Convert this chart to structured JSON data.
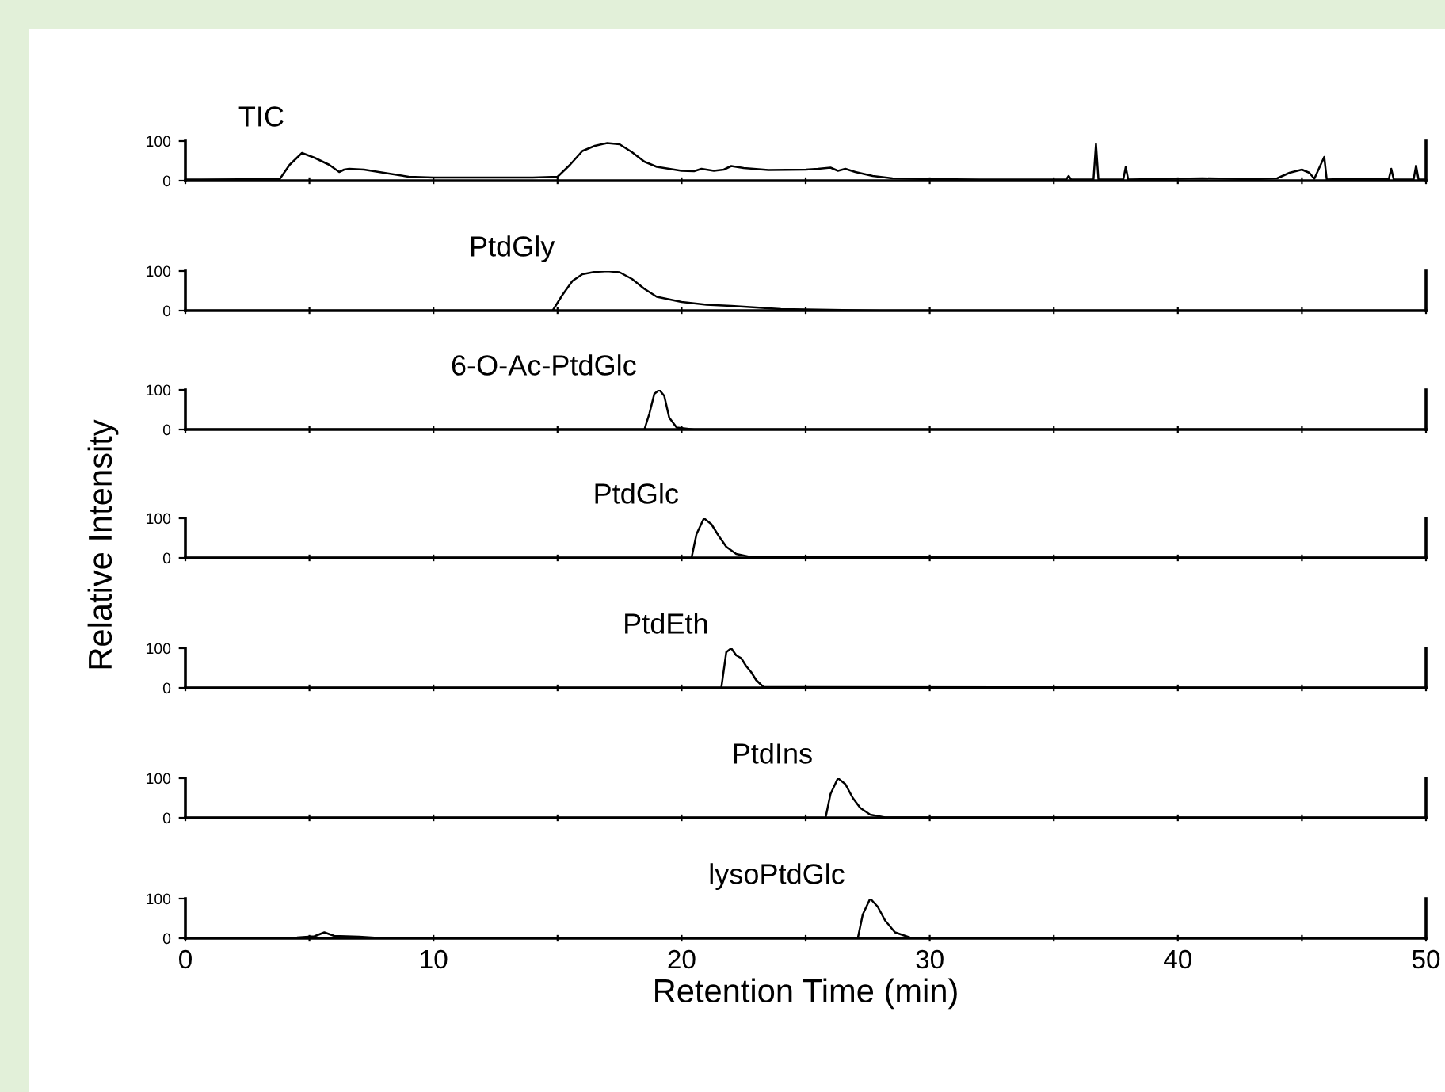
{
  "chart_data": [
    {
      "type": "line",
      "xlim": [
        0,
        50
      ],
      "ylim": [
        0,
        100
      ],
      "yticks": [
        0,
        100
      ],
      "xticks": [
        {
          "value": 0,
          "label": null
        },
        {
          "value": 5,
          "label": null
        },
        {
          "value": 10,
          "label": null
        },
        {
          "value": 15,
          "label": null
        },
        {
          "value": 20,
          "label": null
        },
        {
          "value": 25,
          "label": null
        },
        {
          "value": 30,
          "label": null
        },
        {
          "value": 35,
          "label": null
        },
        {
          "value": 40,
          "label": null
        },
        {
          "value": 45,
          "label": null
        },
        {
          "value": 50,
          "label": null
        }
      ],
      "tick_labels": "y",
      "series": [
        {
          "name": "TIC",
          "color": "#000000",
          "x": [
            0,
            3.8,
            4.2,
            4.7,
            5.2,
            5.8,
            6.2,
            6.4,
            6.6,
            7.2,
            8,
            9,
            10,
            14,
            15,
            15.5,
            16,
            16.5,
            17,
            17.5,
            18,
            18.5,
            19,
            20,
            20.5,
            20.8,
            21.3,
            21.7,
            22,
            22.5,
            23.5,
            25,
            25.5,
            26,
            26.3,
            26.6,
            27,
            27.7,
            28.5,
            30,
            32,
            35.5,
            35.6,
            35.7,
            36.6,
            36.7,
            36.8,
            37.8,
            37.9,
            38,
            41,
            43,
            44,
            44.5,
            45,
            45.3,
            45.5,
            45.9,
            46,
            47,
            48.5,
            48.6,
            48.7,
            49.5,
            49.6,
            49.7,
            50
          ],
          "values": [
            3,
            4,
            40,
            70,
            58,
            40,
            22,
            28,
            30,
            28,
            20,
            10,
            8,
            8,
            10,
            40,
            75,
            88,
            95,
            92,
            72,
            48,
            35,
            25,
            24,
            30,
            25,
            28,
            37,
            32,
            27,
            28,
            30,
            33,
            25,
            30,
            22,
            12,
            6,
            4,
            3,
            3,
            12,
            3,
            3,
            93,
            3,
            3,
            35,
            3,
            6,
            4,
            6,
            20,
            28,
            20,
            5,
            60,
            3,
            5,
            4,
            30,
            3,
            3,
            38,
            3,
            3
          ]
        }
      ]
    },
    {
      "type": "line",
      "xlim": [
        0,
        50
      ],
      "ylim": [
        0,
        100
      ],
      "yticks": [
        0,
        100
      ],
      "xticks": [
        {
          "value": 0,
          "label": null
        },
        {
          "value": 5,
          "label": null
        },
        {
          "value": 10,
          "label": null
        },
        {
          "value": 15,
          "label": null
        },
        {
          "value": 20,
          "label": null
        },
        {
          "value": 25,
          "label": null
        },
        {
          "value": 30,
          "label": null
        },
        {
          "value": 35,
          "label": null
        },
        {
          "value": 40,
          "label": null
        },
        {
          "value": 45,
          "label": null
        },
        {
          "value": 50,
          "label": null
        }
      ],
      "tick_labels": "y",
      "series": [
        {
          "name": "PtdGly",
          "color": "#000000",
          "x": [
            0,
            14.8,
            15.2,
            15.6,
            16,
            16.5,
            17,
            17.5,
            18,
            18.5,
            19,
            20,
            21,
            22,
            23,
            24,
            26,
            28,
            50
          ],
          "values": [
            0,
            0,
            40,
            75,
            92,
            98,
            100,
            97,
            80,
            55,
            35,
            22,
            15,
            12,
            8,
            4,
            2,
            0,
            0
          ]
        }
      ]
    },
    {
      "type": "line",
      "xlim": [
        0,
        50
      ],
      "ylim": [
        0,
        100
      ],
      "yticks": [
        0,
        100
      ],
      "xticks": [
        {
          "value": 0,
          "label": null
        },
        {
          "value": 5,
          "label": null
        },
        {
          "value": 10,
          "label": null
        },
        {
          "value": 15,
          "label": null
        },
        {
          "value": 20,
          "label": null
        },
        {
          "value": 25,
          "label": null
        },
        {
          "value": 30,
          "label": null
        },
        {
          "value": 35,
          "label": null
        },
        {
          "value": 40,
          "label": null
        },
        {
          "value": 45,
          "label": null
        },
        {
          "value": 50,
          "label": null
        }
      ],
      "tick_labels": "y",
      "series": [
        {
          "name": "6-O-Ac-PtdGlc",
          "color": "#000000",
          "x": [
            0,
            18.5,
            18.7,
            18.9,
            19.1,
            19.3,
            19.5,
            19.8,
            20.5,
            50
          ],
          "values": [
            0,
            0,
            40,
            90,
            100,
            85,
            30,
            5,
            0,
            0
          ]
        }
      ]
    },
    {
      "type": "line",
      "xlim": [
        0,
        50
      ],
      "ylim": [
        0,
        100
      ],
      "yticks": [
        0,
        100
      ],
      "xticks": [
        {
          "value": 0,
          "label": null
        },
        {
          "value": 5,
          "label": null
        },
        {
          "value": 10,
          "label": null
        },
        {
          "value": 15,
          "label": null
        },
        {
          "value": 20,
          "label": null
        },
        {
          "value": 25,
          "label": null
        },
        {
          "value": 30,
          "label": null
        },
        {
          "value": 35,
          "label": null
        },
        {
          "value": 40,
          "label": null
        },
        {
          "value": 45,
          "label": null
        },
        {
          "value": 50,
          "label": null
        }
      ],
      "tick_labels": "y",
      "ylabel": "Relative Intensity",
      "series": [
        {
          "name": "PtdGlc",
          "color": "#000000",
          "x": [
            0,
            20.4,
            20.6,
            20.9,
            21.2,
            21.5,
            21.8,
            22.2,
            22.8,
            50
          ],
          "values": [
            0,
            0,
            60,
            100,
            85,
            55,
            28,
            10,
            2,
            0
          ]
        }
      ]
    },
    {
      "type": "line",
      "xlim": [
        0,
        50
      ],
      "ylim": [
        0,
        100
      ],
      "yticks": [
        0,
        100
      ],
      "xticks": [
        {
          "value": 0,
          "label": null
        },
        {
          "value": 5,
          "label": null
        },
        {
          "value": 10,
          "label": null
        },
        {
          "value": 15,
          "label": null
        },
        {
          "value": 20,
          "label": null
        },
        {
          "value": 25,
          "label": null
        },
        {
          "value": 30,
          "label": null
        },
        {
          "value": 35,
          "label": null
        },
        {
          "value": 40,
          "label": null
        },
        {
          "value": 45,
          "label": null
        },
        {
          "value": 50,
          "label": null
        }
      ],
      "tick_labels": "y",
      "series": [
        {
          "name": "PtdEth",
          "color": "#000000",
          "x": [
            0,
            21.6,
            21.8,
            22,
            22.2,
            22.4,
            22.6,
            22.8,
            23,
            23.3,
            50
          ],
          "values": [
            0,
            0,
            90,
            100,
            82,
            75,
            55,
            40,
            20,
            2,
            0
          ]
        }
      ]
    },
    {
      "type": "line",
      "xlim": [
        0,
        50
      ],
      "ylim": [
        0,
        100
      ],
      "yticks": [
        0,
        100
      ],
      "xticks": [
        {
          "value": 0,
          "label": null
        },
        {
          "value": 5,
          "label": null
        },
        {
          "value": 10,
          "label": null
        },
        {
          "value": 15,
          "label": null
        },
        {
          "value": 20,
          "label": null
        },
        {
          "value": 25,
          "label": null
        },
        {
          "value": 30,
          "label": null
        },
        {
          "value": 35,
          "label": null
        },
        {
          "value": 40,
          "label": null
        },
        {
          "value": 45,
          "label": null
        },
        {
          "value": 50,
          "label": null
        }
      ],
      "tick_labels": "y",
      "series": [
        {
          "name": "PtdIns",
          "color": "#000000",
          "x": [
            0,
            25.8,
            26,
            26.3,
            26.6,
            26.9,
            27.2,
            27.6,
            28.2,
            50
          ],
          "values": [
            0,
            0,
            60,
            100,
            85,
            50,
            25,
            8,
            1,
            0
          ]
        }
      ]
    },
    {
      "type": "line",
      "xlim": [
        0,
        50
      ],
      "ylim": [
        0,
        100
      ],
      "yticks": [
        0,
        100
      ],
      "xticks": [
        0,
        {
          "value": 5,
          "label": null
        },
        10,
        {
          "value": 15,
          "label": null
        },
        20,
        {
          "value": 25,
          "label": null
        },
        30,
        {
          "value": 35,
          "label": null
        },
        40,
        {
          "value": 45,
          "label": null
        },
        50
      ],
      "xlabel": "Retention Time (min)",
      "series": [
        {
          "name": "lysoPtdGlc",
          "color": "#000000",
          "x": [
            0,
            4.5,
            5.2,
            5.6,
            6,
            7,
            8,
            27.1,
            27.3,
            27.6,
            27.9,
            28.2,
            28.6,
            29.2,
            50
          ],
          "values": [
            0,
            2,
            5,
            15,
            6,
            4,
            0,
            0,
            60,
            100,
            80,
            45,
            15,
            2,
            0
          ]
        }
      ]
    }
  ]
}
